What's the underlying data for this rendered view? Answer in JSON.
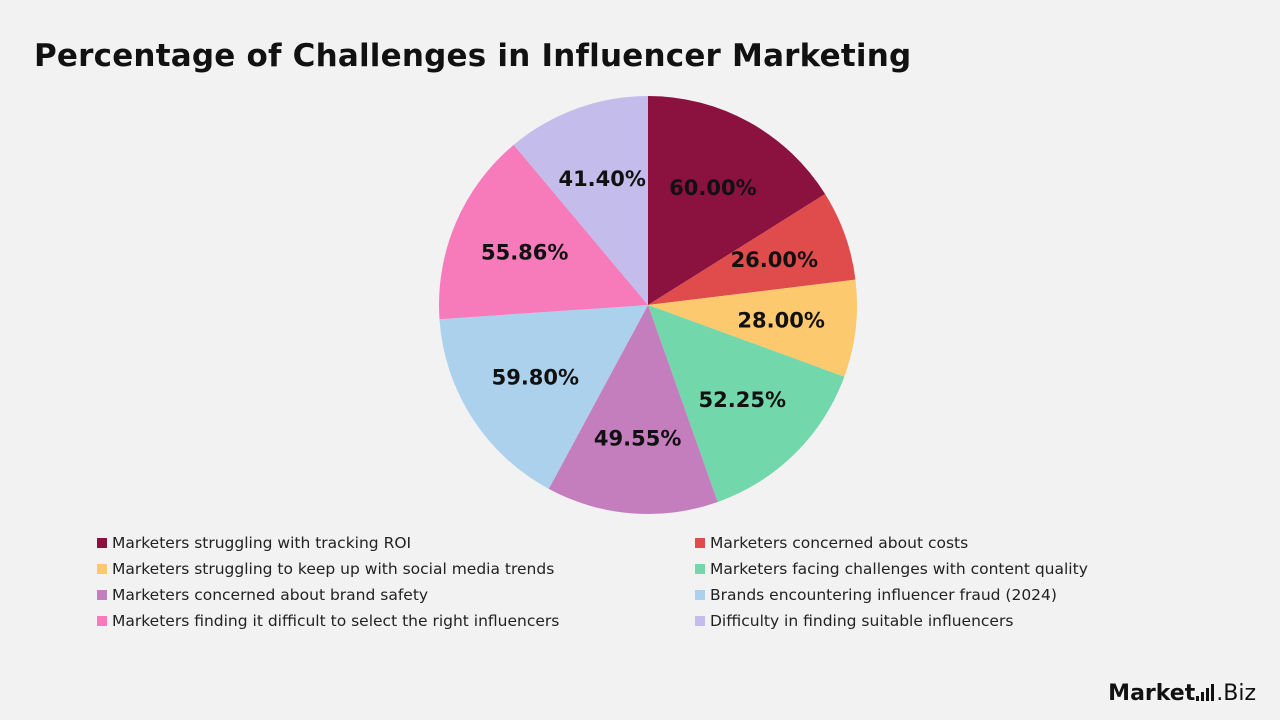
{
  "title": "Percentage of Challenges in Influencer Marketing",
  "brand": {
    "main": "Market",
    "suffix": ".Biz",
    "icon": "bar-chart-icon"
  },
  "chart_data": {
    "type": "pie",
    "title": "Percentage of Challenges in Influencer Marketing",
    "legend_position": "bottom",
    "categories": [
      "Marketers struggling with tracking ROI",
      "Marketers concerned about costs",
      "Marketers struggling to keep up with social media trends",
      "Marketers facing challenges with content quality",
      "Marketers concerned about brand safety",
      "Brands encountering influencer fraud (2024)",
      "Marketers finding it difficult to select the right influencers",
      "Difficulty in finding suitable influencers"
    ],
    "values": [
      60.0,
      26.0,
      28.0,
      52.25,
      49.55,
      59.8,
      55.86,
      41.4
    ],
    "labels": [
      "60.00%",
      "26.00%",
      "28.00%",
      "52.25%",
      "49.55%",
      "59.80%",
      "55.86%",
      "41.40%"
    ],
    "colors": [
      "#8b113f",
      "#e04b4b",
      "#fdc96e",
      "#72d7ab",
      "#c47ebe",
      "#abd1ec",
      "#f77aba",
      "#c4bcea"
    ]
  }
}
